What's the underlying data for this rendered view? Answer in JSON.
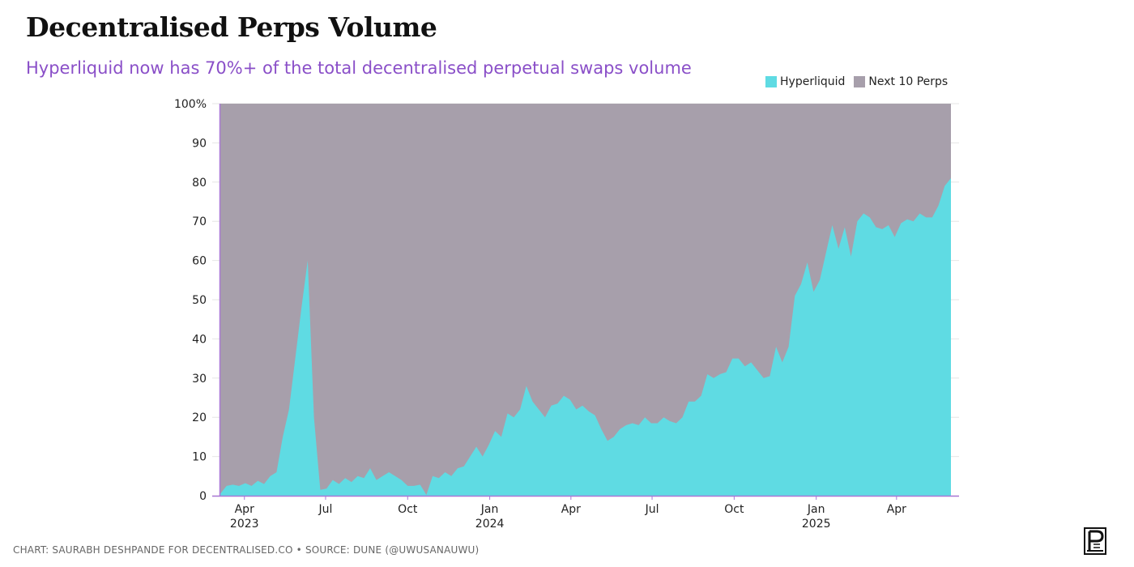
{
  "title": "Decentralised Perps Volume",
  "subtitle": "Hyperliquid now has 70%+ of the total decentralised perpetual swaps volume",
  "footer": {
    "credit": "CHART: SAURABH DESHPANDE FOR DECENTRALISED.CO",
    "separator": "•",
    "source": "SOURCE: DUNE (@UWUSANAUWU)"
  },
  "colors": {
    "hyperliquid": "#5fdbe3",
    "next10": "#a79fab",
    "title": "#111111",
    "subtitle": "#8a4fc8",
    "axis_line": "#a978d6"
  },
  "chart_data": {
    "type": "area",
    "stacked": true,
    "percent": true,
    "x_label_ticks": [
      {
        "date": "2023-04-01",
        "month": "Apr",
        "year": "2023"
      },
      {
        "date": "2023-07-01",
        "month": "Jul",
        "year": ""
      },
      {
        "date": "2023-10-01",
        "month": "Oct",
        "year": ""
      },
      {
        "date": "2024-01-01",
        "month": "Jan",
        "year": "2024"
      },
      {
        "date": "2024-04-01",
        "month": "Apr",
        "year": ""
      },
      {
        "date": "2024-07-01",
        "month": "Jul",
        "year": ""
      },
      {
        "date": "2024-10-01",
        "month": "Oct",
        "year": ""
      },
      {
        "date": "2025-01-01",
        "month": "Jan",
        "year": "2025"
      },
      {
        "date": "2025-04-01",
        "month": "Apr",
        "year": ""
      }
    ],
    "y_ticks": [
      "0",
      "10",
      "20",
      "30",
      "40",
      "50",
      "60",
      "70",
      "80",
      "90",
      "100%"
    ],
    "ylim": [
      0,
      100
    ],
    "legend": [
      {
        "name": "Hyperliquid",
        "color": "#5fdbe3"
      },
      {
        "name": "Next 10 Perps",
        "color": "#a79fab"
      }
    ],
    "legend_position": "top-right",
    "grid": "horizontal",
    "series": [
      {
        "name": "Hyperliquid",
        "color": "#5fdbe3",
        "points": [
          [
            "2023-03-05",
            0.5
          ],
          [
            "2023-03-12",
            2.5
          ],
          [
            "2023-03-19",
            2.8
          ],
          [
            "2023-03-26",
            2.5
          ],
          [
            "2023-04-02",
            3.2
          ],
          [
            "2023-04-09",
            2.5
          ],
          [
            "2023-04-16",
            3.8
          ],
          [
            "2023-04-23",
            3.0
          ],
          [
            "2023-04-30",
            5.0
          ],
          [
            "2023-05-07",
            6.0
          ],
          [
            "2023-05-14",
            15.0
          ],
          [
            "2023-05-21",
            22.0
          ],
          [
            "2023-05-28",
            35.0
          ],
          [
            "2023-06-04",
            48.0
          ],
          [
            "2023-06-11",
            60.0
          ],
          [
            "2023-06-18",
            20.0
          ],
          [
            "2023-06-25",
            1.5
          ],
          [
            "2023-07-02",
            1.8
          ],
          [
            "2023-07-09",
            4.0
          ],
          [
            "2023-07-16",
            3.0
          ],
          [
            "2023-07-23",
            4.5
          ],
          [
            "2023-07-30",
            3.5
          ],
          [
            "2023-08-06",
            5.0
          ],
          [
            "2023-08-13",
            4.5
          ],
          [
            "2023-08-20",
            7.0
          ],
          [
            "2023-08-27",
            4.0
          ],
          [
            "2023-09-03",
            5.0
          ],
          [
            "2023-09-10",
            6.0
          ],
          [
            "2023-09-17",
            5.0
          ],
          [
            "2023-09-24",
            4.0
          ],
          [
            "2023-10-01",
            2.5
          ],
          [
            "2023-10-08",
            2.5
          ],
          [
            "2023-10-15",
            2.8
          ],
          [
            "2023-10-22",
            0.2
          ],
          [
            "2023-10-29",
            5.0
          ],
          [
            "2023-11-05",
            4.5
          ],
          [
            "2023-11-12",
            6.0
          ],
          [
            "2023-11-19",
            5.0
          ],
          [
            "2023-11-26",
            7.0
          ],
          [
            "2023-12-03",
            7.5
          ],
          [
            "2023-12-10",
            10.0
          ],
          [
            "2023-12-17",
            12.5
          ],
          [
            "2023-12-24",
            10.0
          ],
          [
            "2023-12-31",
            13.0
          ],
          [
            "2024-01-07",
            16.5
          ],
          [
            "2024-01-14",
            15.0
          ],
          [
            "2024-01-21",
            21.0
          ],
          [
            "2024-01-28",
            20.0
          ],
          [
            "2024-02-04",
            22.0
          ],
          [
            "2024-02-11",
            28.0
          ],
          [
            "2024-02-18",
            24.0
          ],
          [
            "2024-02-25",
            22.0
          ],
          [
            "2024-03-03",
            20.0
          ],
          [
            "2024-03-10",
            23.0
          ],
          [
            "2024-03-17",
            23.5
          ],
          [
            "2024-03-24",
            25.5
          ],
          [
            "2024-03-31",
            24.5
          ],
          [
            "2024-04-07",
            22.0
          ],
          [
            "2024-04-14",
            23.0
          ],
          [
            "2024-04-21",
            21.5
          ],
          [
            "2024-04-28",
            20.5
          ],
          [
            "2024-05-05",
            17.0
          ],
          [
            "2024-05-12",
            14.0
          ],
          [
            "2024-05-19",
            15.0
          ],
          [
            "2024-05-26",
            17.0
          ],
          [
            "2024-06-02",
            18.0
          ],
          [
            "2024-06-09",
            18.5
          ],
          [
            "2024-06-16",
            18.0
          ],
          [
            "2024-06-23",
            20.0
          ],
          [
            "2024-06-30",
            18.5
          ],
          [
            "2024-07-07",
            18.5
          ],
          [
            "2024-07-14",
            20.0
          ],
          [
            "2024-07-21",
            19.0
          ],
          [
            "2024-07-28",
            18.5
          ],
          [
            "2024-08-04",
            20.0
          ],
          [
            "2024-08-11",
            24.0
          ],
          [
            "2024-08-18",
            24.0
          ],
          [
            "2024-08-25",
            25.5
          ],
          [
            "2024-09-01",
            31.0
          ],
          [
            "2024-09-08",
            30.0
          ],
          [
            "2024-09-15",
            31.0
          ],
          [
            "2024-09-22",
            31.5
          ],
          [
            "2024-09-29",
            35.0
          ],
          [
            "2024-10-06",
            35.0
          ],
          [
            "2024-10-13",
            33.0
          ],
          [
            "2024-10-20",
            34.0
          ],
          [
            "2024-10-27",
            32.0
          ],
          [
            "2024-11-03",
            30.0
          ],
          [
            "2024-11-10",
            30.5
          ],
          [
            "2024-11-17",
            38.0
          ],
          [
            "2024-11-24",
            34.0
          ],
          [
            "2024-12-01",
            38.0
          ],
          [
            "2024-12-08",
            51.0
          ],
          [
            "2024-12-15",
            54.0
          ],
          [
            "2024-12-22",
            59.5
          ],
          [
            "2024-12-29",
            52.0
          ],
          [
            "2025-01-05",
            55.0
          ],
          [
            "2025-01-12",
            62.0
          ],
          [
            "2025-01-19",
            69.0
          ],
          [
            "2025-01-26",
            63.0
          ],
          [
            "2025-02-02",
            68.5
          ],
          [
            "2025-02-09",
            61.0
          ],
          [
            "2025-02-16",
            70.0
          ],
          [
            "2025-02-23",
            72.0
          ],
          [
            "2025-03-02",
            71.0
          ],
          [
            "2025-03-09",
            68.5
          ],
          [
            "2025-03-16",
            68.0
          ],
          [
            "2025-03-23",
            69.0
          ],
          [
            "2025-03-30",
            66.0
          ],
          [
            "2025-04-06",
            69.5
          ],
          [
            "2025-04-13",
            70.5
          ],
          [
            "2025-04-20",
            70.0
          ],
          [
            "2025-04-27",
            72.0
          ],
          [
            "2025-05-04",
            71.0
          ],
          [
            "2025-05-11",
            71.0
          ],
          [
            "2025-05-18",
            74.0
          ],
          [
            "2025-05-25",
            79.0
          ],
          [
            "2025-06-01",
            81.0
          ]
        ]
      },
      {
        "name": "Next 10 Perps",
        "color": "#a79fab",
        "note_remainder_of": "Hyperliquid",
        "top": 100
      }
    ]
  }
}
